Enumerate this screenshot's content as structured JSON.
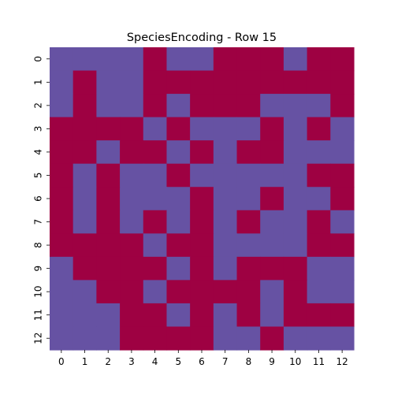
{
  "chart_data": {
    "type": "heatmap",
    "title": "SpeciesEncoding - Row 15",
    "xlabel": "",
    "ylabel": "",
    "x_ticks": [
      "0",
      "1",
      "2",
      "3",
      "4",
      "5",
      "6",
      "7",
      "8",
      "9",
      "10",
      "11",
      "12"
    ],
    "y_ticks": [
      "0",
      "1",
      "2",
      "3",
      "4",
      "5",
      "6",
      "7",
      "8",
      "9",
      "10",
      "11",
      "12"
    ],
    "colors": {
      "0": "#6652a3",
      "1": "#9e0142"
    },
    "grid": false,
    "matrix": [
      [
        0,
        0,
        0,
        0,
        1,
        0,
        0,
        1,
        1,
        1,
        0,
        1,
        1
      ],
      [
        0,
        1,
        0,
        0,
        1,
        1,
        1,
        1,
        1,
        1,
        1,
        1,
        1
      ],
      [
        0,
        1,
        0,
        0,
        1,
        0,
        1,
        1,
        1,
        0,
        0,
        0,
        1
      ],
      [
        1,
        1,
        1,
        1,
        0,
        1,
        0,
        0,
        0,
        1,
        0,
        1,
        0
      ],
      [
        1,
        1,
        0,
        1,
        1,
        0,
        1,
        0,
        1,
        1,
        0,
        0,
        0
      ],
      [
        1,
        0,
        1,
        0,
        0,
        1,
        0,
        0,
        0,
        0,
        0,
        1,
        1
      ],
      [
        1,
        0,
        1,
        0,
        0,
        0,
        1,
        0,
        0,
        1,
        0,
        0,
        1
      ],
      [
        1,
        0,
        1,
        0,
        1,
        0,
        1,
        0,
        1,
        0,
        0,
        1,
        0
      ],
      [
        1,
        1,
        1,
        1,
        0,
        1,
        1,
        0,
        0,
        0,
        0,
        1,
        1
      ],
      [
        0,
        1,
        1,
        1,
        1,
        0,
        1,
        0,
        1,
        1,
        1,
        0,
        0
      ],
      [
        0,
        0,
        1,
        1,
        0,
        1,
        1,
        1,
        1,
        0,
        1,
        0,
        0
      ],
      [
        0,
        0,
        0,
        1,
        1,
        0,
        1,
        0,
        1,
        0,
        1,
        1,
        1
      ],
      [
        0,
        0,
        0,
        1,
        1,
        1,
        1,
        0,
        0,
        1,
        0,
        0,
        0
      ]
    ]
  }
}
